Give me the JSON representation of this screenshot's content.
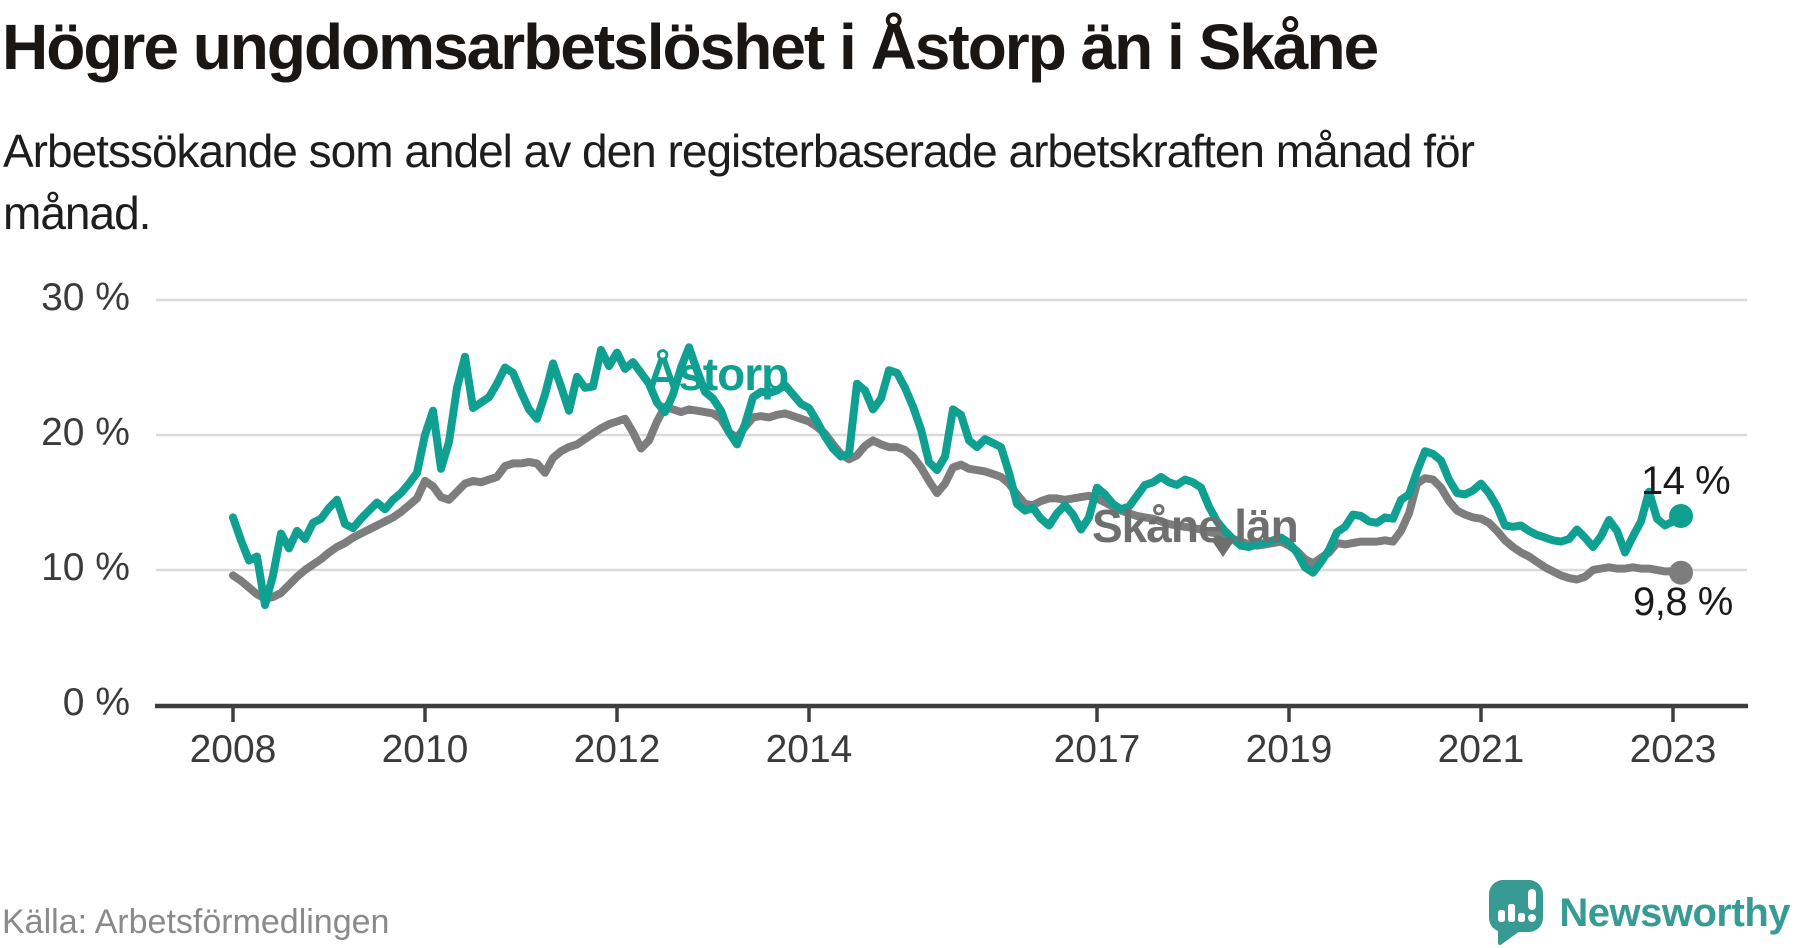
{
  "page": {
    "brand": "Newsworthy"
  },
  "chart_data": {
    "type": "line",
    "title": "Högre ungdomsarbetslöshet i Åstorp än i Skåne",
    "subtitle_line1": "Arbetssökande som andel av den registerbaserade arbetskraften månad för",
    "subtitle_line2": "månad.",
    "source": "Källa: Arbetsförmedlingen",
    "x_unit": "month",
    "x_start": "2008-01",
    "x_end": "2023-02",
    "ylim": [
      0,
      30
    ],
    "grid": "horizontal",
    "yticks": [
      {
        "value": 30,
        "label": "30 %"
      },
      {
        "value": 20,
        "label": "20 %"
      },
      {
        "value": 10,
        "label": "10 %"
      },
      {
        "value": 0,
        "label": "0 %"
      }
    ],
    "xticks": [
      {
        "year": 2008,
        "label": "2008"
      },
      {
        "year": 2010,
        "label": "2010"
      },
      {
        "year": 2012,
        "label": "2012"
      },
      {
        "year": 2014,
        "label": "2014"
      },
      {
        "year": 2017,
        "label": "2017"
      },
      {
        "year": 2019,
        "label": "2019"
      },
      {
        "year": 2021,
        "label": "2021"
      },
      {
        "year": 2023,
        "label": "2023"
      }
    ],
    "annotations": {
      "astorp_end_value": "14 %",
      "skane_end_value": "9,8 %",
      "skane_arrow": "down-arrow"
    },
    "series": [
      {
        "name": "Skåne län",
        "color": "#7d7d7d",
        "values": [
          9.6,
          9.2,
          8.7,
          8.2,
          7.9,
          8.0,
          8.3,
          8.9,
          9.5,
          10.0,
          10.4,
          10.8,
          11.3,
          11.7,
          12.0,
          12.4,
          12.7,
          13.0,
          13.3,
          13.6,
          13.9,
          14.3,
          14.8,
          15.3,
          16.6,
          16.2,
          15.4,
          15.2,
          15.8,
          16.4,
          16.6,
          16.5,
          16.7,
          16.9,
          17.7,
          17.9,
          17.9,
          18.0,
          17.9,
          17.2,
          18.3,
          18.8,
          19.1,
          19.3,
          19.7,
          20.1,
          20.5,
          20.8,
          21.0,
          21.2,
          20.2,
          19.0,
          19.6,
          21.0,
          22.1,
          21.9,
          21.7,
          21.9,
          21.8,
          21.7,
          21.6,
          21.2,
          20.2,
          19.8,
          20.6,
          21.3,
          21.4,
          21.3,
          21.5,
          21.6,
          21.4,
          21.2,
          21.0,
          20.6,
          20.1,
          19.3,
          18.6,
          18.2,
          18.5,
          19.2,
          19.6,
          19.3,
          19.1,
          19.1,
          18.9,
          18.4,
          17.6,
          16.6,
          15.7,
          16.4,
          17.6,
          17.8,
          17.5,
          17.4,
          17.3,
          17.1,
          16.9,
          16.4,
          15.6,
          14.9,
          14.8,
          15.1,
          15.3,
          15.3,
          15.2,
          15.3,
          15.4,
          15.5,
          15.3,
          15.0,
          14.7,
          14.4,
          14.2,
          14.0,
          13.9,
          13.8,
          13.6,
          13.4,
          13.3,
          13.2,
          13.1,
          13.0,
          12.8,
          12.7,
          12.5,
          12.3,
          12.1,
          11.9,
          11.8,
          11.9,
          12.0,
          12.1,
          11.8,
          11.4,
          10.8,
          10.5,
          10.9,
          11.3,
          12.0,
          11.9,
          12.0,
          12.1,
          12.1,
          12.1,
          12.2,
          12.1,
          12.9,
          14.2,
          16.4,
          16.8,
          16.7,
          16.1,
          15.1,
          14.4,
          14.1,
          13.9,
          13.8,
          13.5,
          12.9,
          12.2,
          11.7,
          11.3,
          11.0,
          10.6,
          10.2,
          9.9,
          9.6,
          9.4,
          9.3,
          9.5,
          10.0,
          10.1,
          10.2,
          10.1,
          10.1,
          10.2,
          10.1,
          10.1,
          10.0,
          9.9,
          9.9,
          9.8
        ]
      },
      {
        "name": "Åstorp",
        "color": "#0fa092",
        "values": [
          13.9,
          12.2,
          10.7,
          11.0,
          7.4,
          9.6,
          12.7,
          11.6,
          12.9,
          12.3,
          13.5,
          13.8,
          14.6,
          15.2,
          13.4,
          13.1,
          13.8,
          14.4,
          15.0,
          14.5,
          15.2,
          15.7,
          16.4,
          17.2,
          20.0,
          21.8,
          17.5,
          19.5,
          23.5,
          25.8,
          22.0,
          22.4,
          22.8,
          23.8,
          25.0,
          24.6,
          23.2,
          21.9,
          21.2,
          23.0,
          25.3,
          23.6,
          21.8,
          24.3,
          23.5,
          23.6,
          26.3,
          25.1,
          26.1,
          24.9,
          25.4,
          24.6,
          23.8,
          22.4,
          21.7,
          23.0,
          25.0,
          26.5,
          24.8,
          23.2,
          22.7,
          21.8,
          20.2,
          19.3,
          20.8,
          22.8,
          23.2,
          23.1,
          23.3,
          23.7,
          23.0,
          22.3,
          22.0,
          21.0,
          19.9,
          19.0,
          18.4,
          18.6,
          23.8,
          23.3,
          21.9,
          22.7,
          24.8,
          24.6,
          23.5,
          22.1,
          20.4,
          18.0,
          17.4,
          18.4,
          21.9,
          21.5,
          19.6,
          19.1,
          19.7,
          19.4,
          19.1,
          17.2,
          14.9,
          14.4,
          14.6,
          13.8,
          13.3,
          14.2,
          14.8,
          14.1,
          13.0,
          13.9,
          16.1,
          15.6,
          14.9,
          14.5,
          14.7,
          15.5,
          16.3,
          16.5,
          16.9,
          16.5,
          16.3,
          16.7,
          16.5,
          16.1,
          14.7,
          13.6,
          12.9,
          12.3,
          11.8,
          11.7,
          11.9,
          12.0,
          12.2,
          12.4,
          12.0,
          11.3,
          10.2,
          9.8,
          10.6,
          11.5,
          12.8,
          13.2,
          14.1,
          14.0,
          13.6,
          13.5,
          13.9,
          13.8,
          15.2,
          15.6,
          17.3,
          18.8,
          18.6,
          18.1,
          16.7,
          15.7,
          15.6,
          15.9,
          16.4,
          15.7,
          14.7,
          13.3,
          13.2,
          13.3,
          12.9,
          12.6,
          12.4,
          12.2,
          12.1,
          12.3,
          13.0,
          12.4,
          11.7,
          12.5,
          13.7,
          12.9,
          11.3,
          12.5,
          13.6,
          15.8,
          13.8,
          13.3,
          13.6,
          14.0
        ]
      }
    ]
  }
}
